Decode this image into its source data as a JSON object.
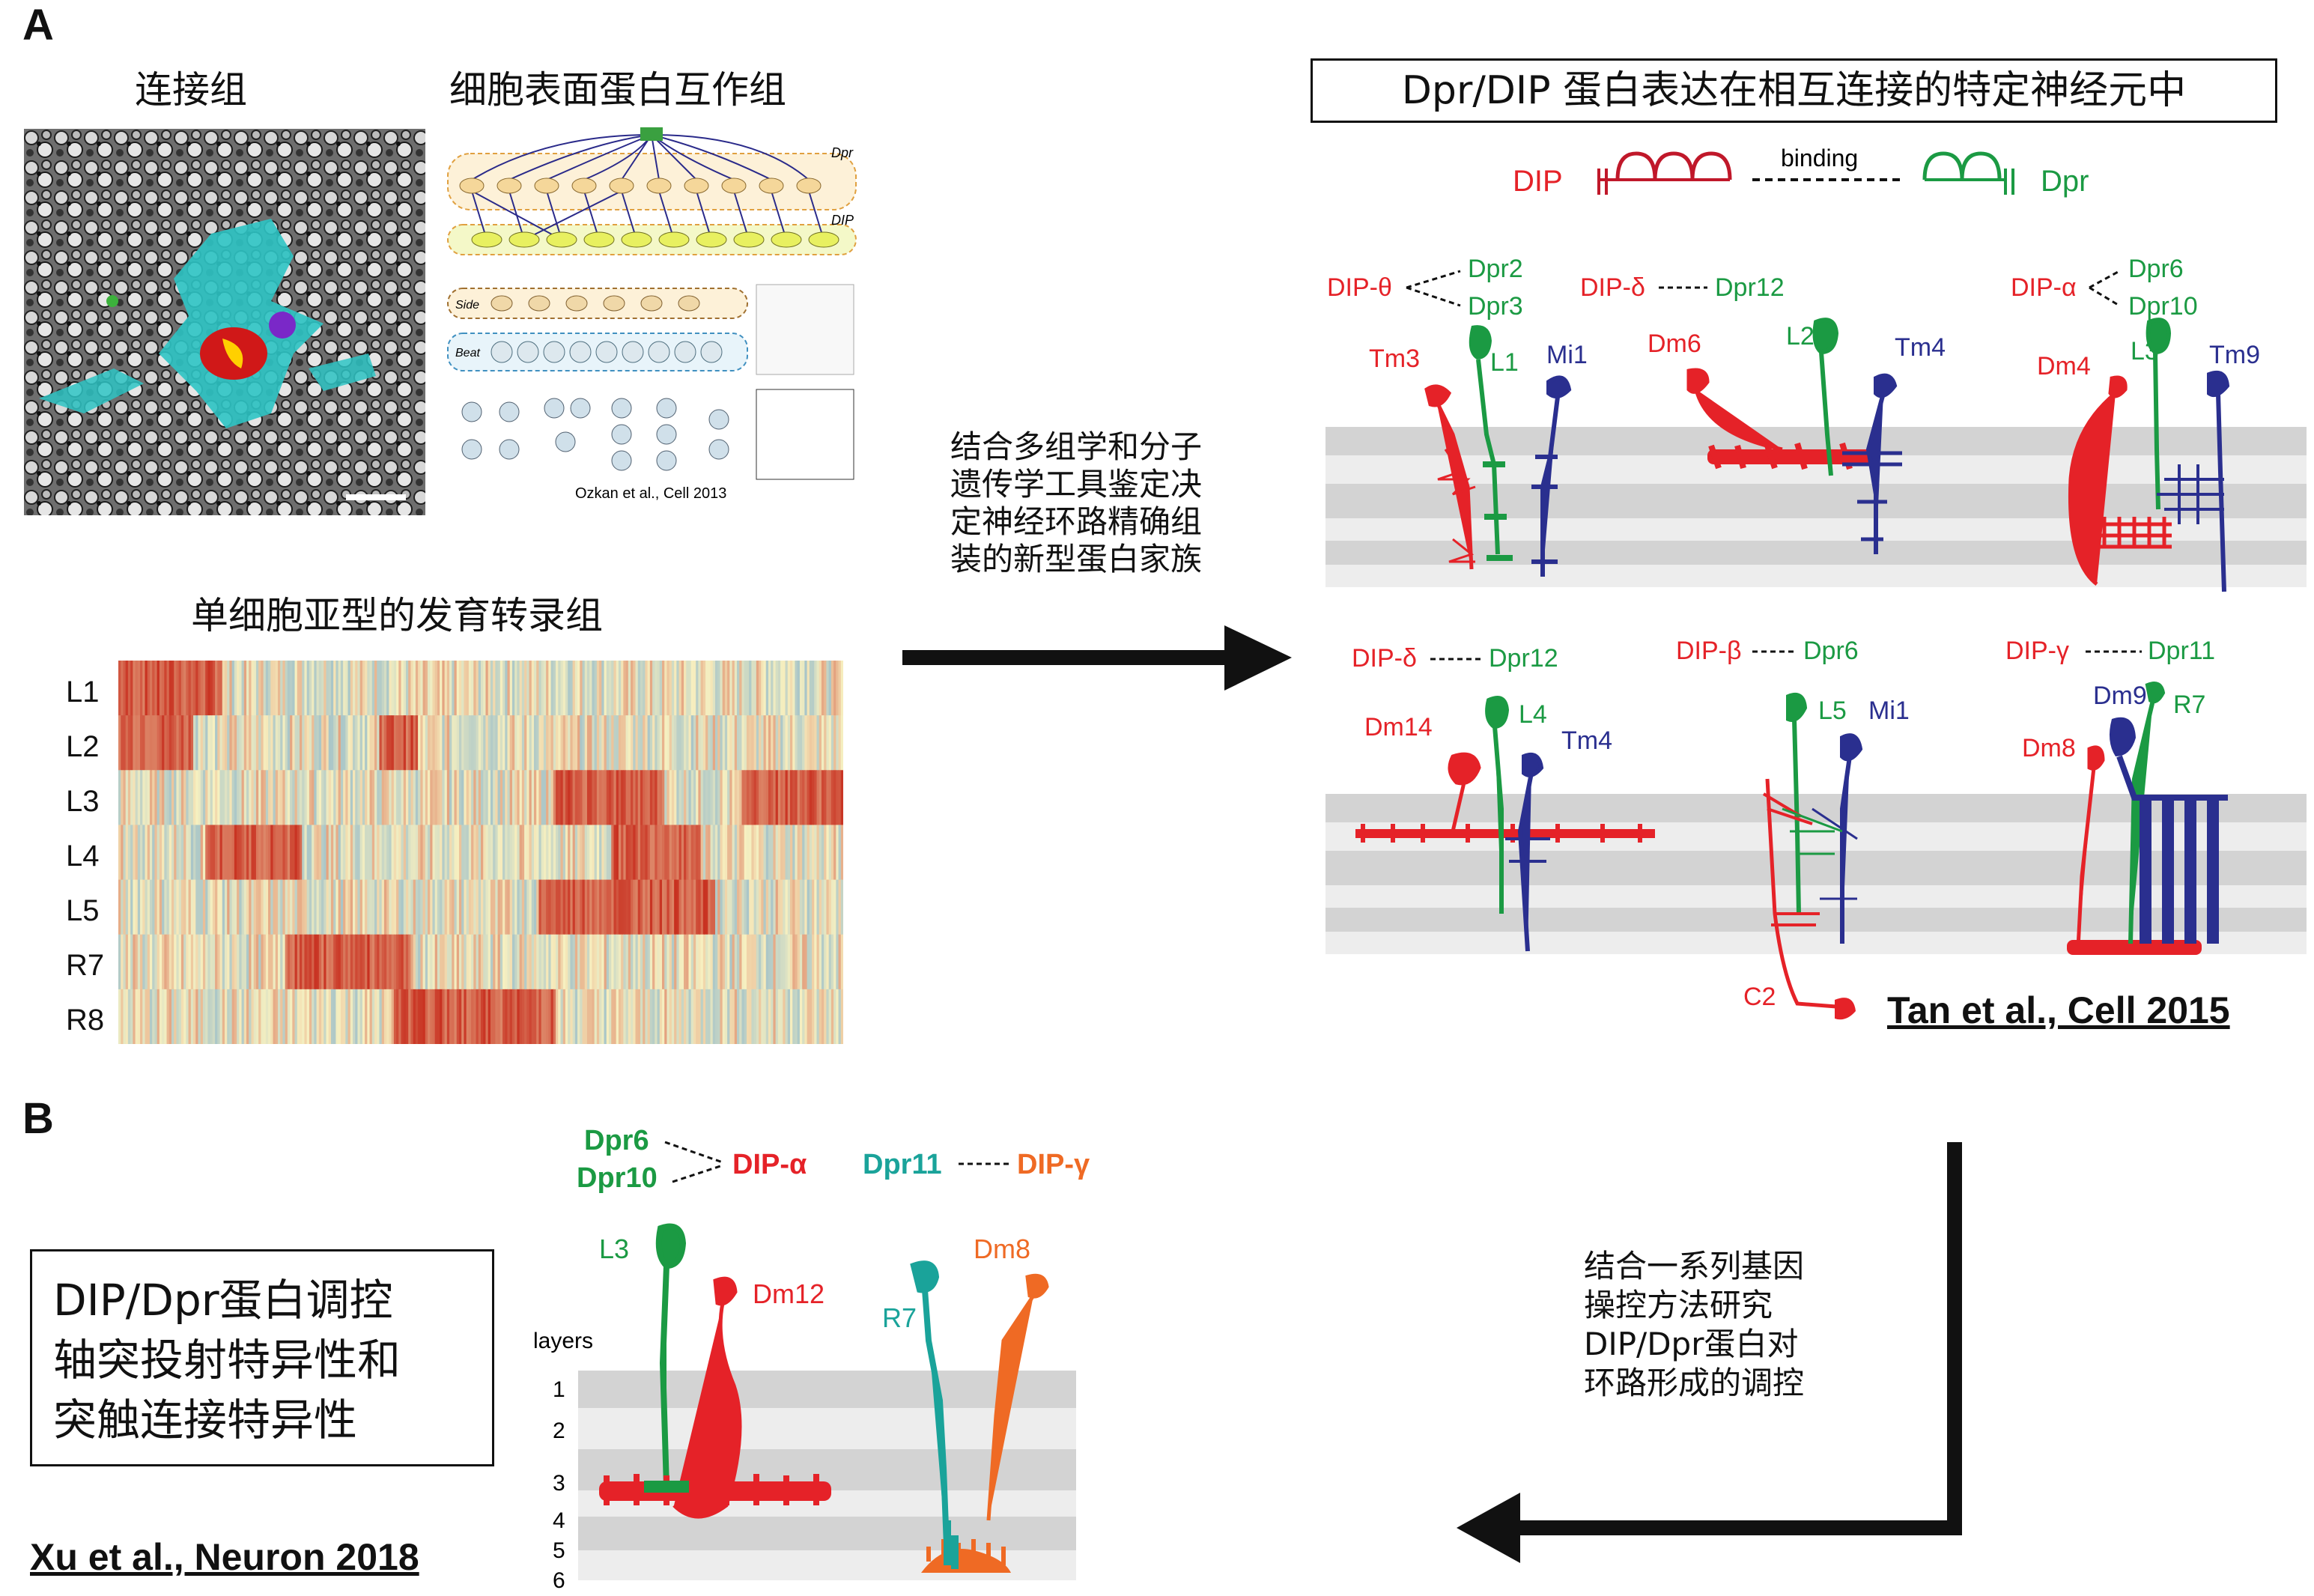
{
  "panel_a": {
    "letter": "A",
    "connectome_title": "连接组",
    "interactome_title": "细胞表面蛋白互作组",
    "interactome_citation": "Ozkan et al., Cell 2013",
    "interactome_labels": {
      "dpr": "Dpr",
      "dip": "DIP",
      "side": "Side",
      "beat": "Beat"
    },
    "transcriptome_title": "单细胞亚型的发育转录组",
    "heatmap_rows": [
      "L1",
      "L2",
      "L3",
      "L4",
      "L5",
      "R7",
      "R8"
    ],
    "heatmap_colors": {
      "high": "#c83020",
      "mid": "#f7f0c0",
      "low": "#5a9bd0"
    },
    "arrow_text": [
      "结合多组学和分子",
      "遗传学工具鉴定决",
      "定神经环路精确组",
      "装的新型蛋白家族"
    ],
    "right_title": "Dpr/DIP 蛋白表达在相互连接的特定神经元中",
    "legend": {
      "dip": "DIP",
      "binding": "binding",
      "dpr": "Dpr"
    },
    "circuits": [
      {
        "pair_dip": "DIP-θ",
        "pair_dpr": [
          "Dpr2",
          "Dpr3"
        ],
        "red": "Tm3",
        "green": "L1",
        "blue": "Mi1"
      },
      {
        "pair_dip": "DIP-δ",
        "pair_dpr": [
          "Dpr12"
        ],
        "red": "Dm6",
        "green": "L2",
        "blue": "Tm4"
      },
      {
        "pair_dip": "DIP-α",
        "pair_dpr": [
          "Dpr6",
          "Dpr10"
        ],
        "red": "Dm4",
        "green": "L3",
        "blue": "Tm9"
      },
      {
        "pair_dip": "DIP-δ",
        "pair_dpr": [
          "Dpr12"
        ],
        "red": "Dm14",
        "green": "L4",
        "blue": "Tm4"
      },
      {
        "pair_dip": "DIP-β",
        "pair_dpr": [
          "Dpr6"
        ],
        "red": "C2",
        "green": "L5",
        "blue": "Mi1"
      },
      {
        "pair_dip": "DIP-γ",
        "pair_dpr": [
          "Dpr11"
        ],
        "red": "Dm8",
        "green": "R7",
        "blue": "Dm9"
      }
    ],
    "citation": "Tan et al., Cell 2015"
  },
  "panel_b": {
    "letter": "B",
    "box_text": [
      "DIP/Dpr蛋白调控",
      "轴突投射特异性和",
      "突触连接特异性"
    ],
    "citation": "Xu et al., Neuron 2018",
    "pair1": {
      "dpr": [
        "Dpr6",
        "Dpr10"
      ],
      "dip": "DIP-α"
    },
    "pair2": {
      "dpr": "Dpr11",
      "dip": "DIP-γ"
    },
    "neurons": {
      "l3": "L3",
      "dm12": "Dm12",
      "r7": "R7",
      "dm8": "Dm8"
    },
    "layers_label": "layers",
    "layers": [
      "1",
      "2",
      "3",
      "4",
      "5",
      "6"
    ],
    "arrow_text": [
      "结合一系列基因",
      "操控方法研究",
      "DIP/Dpr蛋白对",
      "环路形成的调控"
    ]
  },
  "colors": {
    "red": "#e52228",
    "green": "#1b9a43",
    "blue": "#2a2f8f",
    "teal": "#1aa39a",
    "orange": "#ef6a24"
  }
}
